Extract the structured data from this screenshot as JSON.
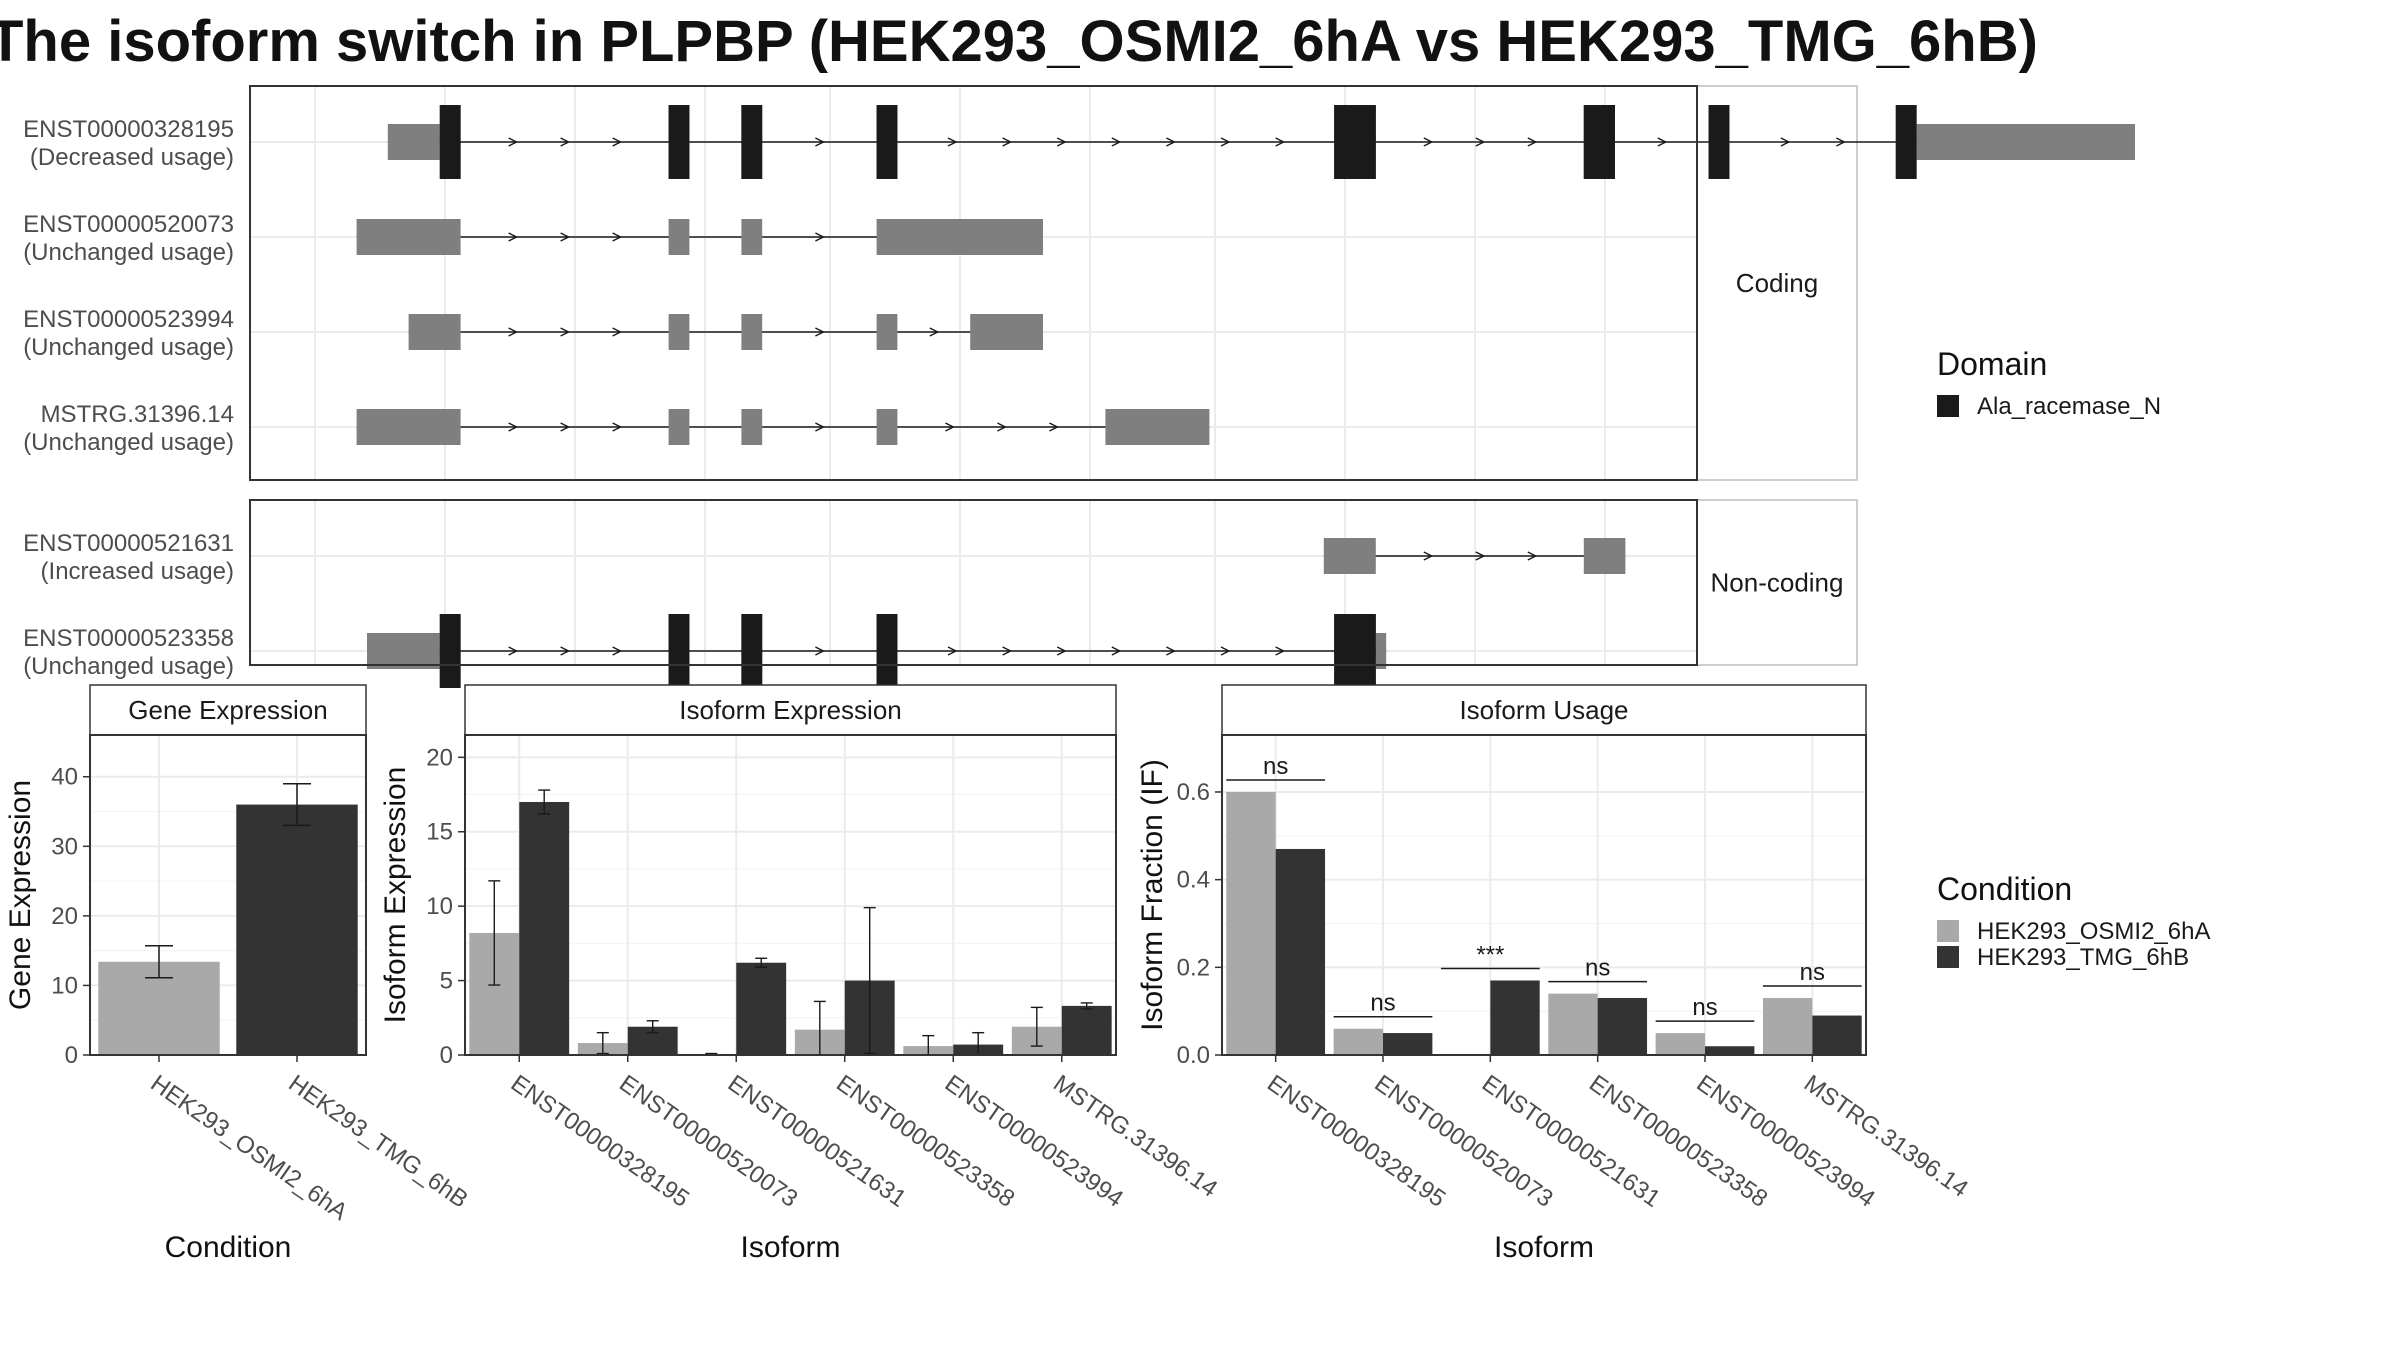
{
  "title": "The isoform switch in PLPBP (HEK293_OSMI2_6hA vs HEK293_TMG_6hB)",
  "structure": {
    "panels": [
      {
        "strip": "Coding",
        "rows": [
          {
            "name": "ENST00000328195",
            "usage": "(Decreased usage)",
            "exons": [
              [
                0.07,
                0.12,
                "utr"
              ],
              [
                0.12,
                0.14,
                "cds"
              ],
              [
                0.34,
                0.36,
                "cds"
              ],
              [
                0.41,
                0.43,
                "cds"
              ],
              [
                0.54,
                0.56,
                "cds"
              ],
              [
                0.98,
                1.02,
                "cds"
              ],
              [
                1.22,
                1.25,
                "cds"
              ],
              [
                1.34,
                1.36,
                "cds"
              ],
              [
                1.52,
                1.54,
                "cds"
              ],
              [
                1.54,
                1.75,
                "utr"
              ]
            ],
            "domains": [
              [
                0.12,
                0.14
              ],
              [
                0.34,
                0.36
              ],
              [
                0.41,
                0.43
              ],
              [
                0.54,
                0.56
              ],
              [
                0.98,
                1.02
              ],
              [
                1.22,
                1.25
              ],
              [
                1.34,
                1.36
              ],
              [
                1.52,
                1.54
              ]
            ]
          },
          {
            "name": "ENST00000520073",
            "usage": "(Unchanged usage)",
            "exons": [
              [
                0.04,
                0.14,
                "utr"
              ],
              [
                0.34,
                0.36,
                "utr"
              ],
              [
                0.41,
                0.43,
                "utr"
              ],
              [
                0.54,
                0.7,
                "utr"
              ]
            ],
            "domains": []
          },
          {
            "name": "ENST00000523994",
            "usage": "(Unchanged usage)",
            "exons": [
              [
                0.09,
                0.14,
                "utr"
              ],
              [
                0.34,
                0.36,
                "utr"
              ],
              [
                0.41,
                0.43,
                "utr"
              ],
              [
                0.54,
                0.56,
                "utr"
              ],
              [
                0.63,
                0.7,
                "utr"
              ]
            ],
            "domains": []
          },
          {
            "name": "MSTRG.31396.14",
            "usage": "(Unchanged usage)",
            "exons": [
              [
                0.04,
                0.14,
                "utr"
              ],
              [
                0.34,
                0.36,
                "utr"
              ],
              [
                0.41,
                0.43,
                "utr"
              ],
              [
                0.54,
                0.56,
                "utr"
              ],
              [
                0.76,
                0.86,
                "utr"
              ]
            ],
            "domains": []
          }
        ]
      },
      {
        "strip": "Non-coding",
        "rows": [
          {
            "name": "ENST00000521631",
            "usage": "(Increased usage)",
            "exons": [
              [
                0.97,
                1.02,
                "utr"
              ],
              [
                1.22,
                1.26,
                "utr"
              ]
            ],
            "domains": []
          },
          {
            "name": "ENST00000523358",
            "usage": "(Unchanged usage)",
            "exons": [
              [
                0.05,
                0.12,
                "utr"
              ],
              [
                0.12,
                0.14,
                "cds"
              ],
              [
                0.34,
                0.36,
                "cds"
              ],
              [
                0.41,
                0.43,
                "cds"
              ],
              [
                0.54,
                0.56,
                "cds"
              ],
              [
                0.98,
                1.02,
                "cds"
              ],
              [
                1.02,
                1.03,
                "utr"
              ]
            ],
            "domains": [
              [
                0.12,
                0.14
              ],
              [
                0.34,
                0.36
              ],
              [
                0.41,
                0.43
              ],
              [
                0.54,
                0.56
              ],
              [
                0.98,
                1.02
              ]
            ]
          }
        ]
      }
    ]
  },
  "legends": {
    "domain": {
      "title": "Domain",
      "items": [
        {
          "label": "Ala_racemase_N",
          "color": "#1a1a1a"
        }
      ]
    },
    "condition": {
      "title": "Condition",
      "items": [
        {
          "label": "HEK293_OSMI2_6hA",
          "color": "#a9a9a9"
        },
        {
          "label": "HEK293_TMG_6hB",
          "color": "#333333"
        }
      ]
    }
  },
  "chart_data": [
    {
      "type": "bar",
      "title": "Gene Expression",
      "xlabel": "Condition",
      "ylabel": "Gene Expression",
      "ylim": [
        0,
        46
      ],
      "yticks": [
        0,
        10,
        20,
        30,
        40
      ],
      "categories": [
        "HEK293_OSMI2_6hA",
        "HEK293_TMG_6hB"
      ],
      "values": [
        13.4,
        36.0
      ],
      "errors": [
        2.3,
        3.0
      ],
      "colors": [
        "#a9a9a9",
        "#333333"
      ]
    },
    {
      "type": "bar",
      "title": "Isoform Expression",
      "xlabel": "Isoform",
      "ylabel": "Isoform Expression",
      "ylim": [
        0,
        21.5
      ],
      "yticks": [
        0,
        5,
        10,
        15,
        20
      ],
      "categories": [
        "ENST00000328195",
        "ENST00000520073",
        "ENST00000521631",
        "ENST00000523358",
        "ENST00000523994",
        "MSTRG.31396.14"
      ],
      "series": [
        {
          "name": "HEK293_OSMI2_6hA",
          "values": [
            8.2,
            0.8,
            0.0,
            1.7,
            0.6,
            1.9
          ],
          "errors": [
            3.5,
            0.7,
            0.1,
            1.9,
            0.7,
            1.3
          ]
        },
        {
          "name": "HEK293_TMG_6hB",
          "values": [
            17.0,
            1.9,
            6.2,
            5.0,
            0.7,
            3.3
          ],
          "errors": [
            0.8,
            0.4,
            0.3,
            4.9,
            0.8,
            0.2
          ]
        }
      ]
    },
    {
      "type": "bar",
      "title": "Isoform Usage",
      "xlabel": "Isoform",
      "ylabel": "Isoform Fraction (IF)",
      "ylim": [
        0,
        0.73
      ],
      "yticks": [
        0.0,
        0.2,
        0.4,
        0.6
      ],
      "categories": [
        "ENST00000328195",
        "ENST00000520073",
        "ENST00000521631",
        "ENST00000523358",
        "ENST00000523994",
        "MSTRG.31396.14"
      ],
      "series": [
        {
          "name": "HEK293_OSMI2_6hA",
          "values": [
            0.6,
            0.06,
            0.0,
            0.14,
            0.05,
            0.13
          ]
        },
        {
          "name": "HEK293_TMG_6hB",
          "values": [
            0.47,
            0.05,
            0.17,
            0.13,
            0.02,
            0.09
          ]
        }
      ],
      "significance": [
        "ns",
        "ns",
        "***",
        "ns",
        "ns",
        "ns"
      ]
    }
  ]
}
